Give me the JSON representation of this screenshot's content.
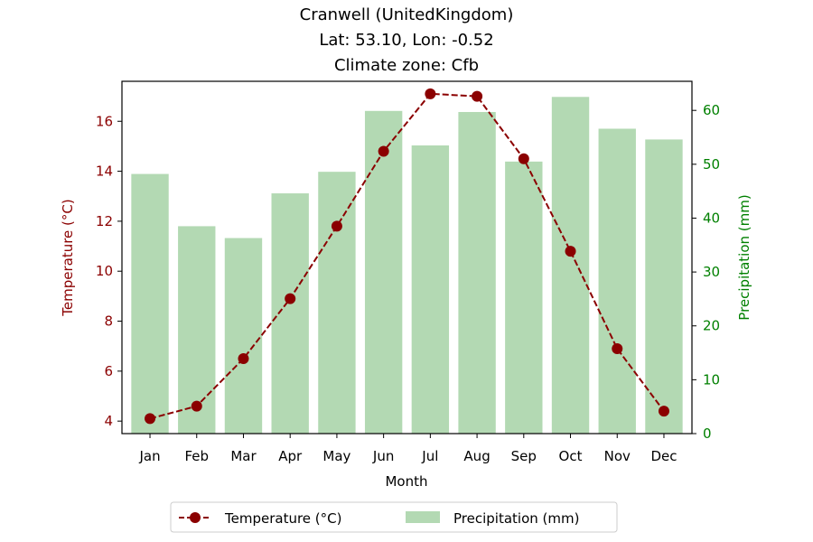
{
  "colors": {
    "temperature": "#8b0000",
    "precipitation_fill": "#b3d9b3",
    "precipitation_axis": "#008000",
    "axis": "#000000"
  },
  "chart_data": {
    "type": "bar",
    "title_lines": [
      "Cranwell (UnitedKingdom)",
      "Lat: 53.10, Lon: -0.52",
      "Climate zone: Cfb"
    ],
    "xlabel": "Month",
    "ylabel_left": "Temperature (°C)",
    "ylabel_right": "Precipitation (mm)",
    "categories": [
      "Jan",
      "Feb",
      "Mar",
      "Apr",
      "May",
      "Jun",
      "Jul",
      "Aug",
      "Sep",
      "Oct",
      "Nov",
      "Dec"
    ],
    "ylim_left": [
      3.5,
      17.6
    ],
    "ylim_right": [
      0,
      65.4
    ],
    "yticks_left": [
      4,
      6,
      8,
      10,
      12,
      14,
      16
    ],
    "yticks_right": [
      0,
      10,
      20,
      30,
      40,
      50,
      60
    ],
    "legend_position": "bottom-center",
    "grid": false,
    "series": [
      {
        "name": "Temperature (°C)",
        "type": "line",
        "axis": "left",
        "line_style": "dashed",
        "marker": "circle",
        "values": [
          4.1,
          4.6,
          6.5,
          8.9,
          11.8,
          14.8,
          17.1,
          17.0,
          14.5,
          10.8,
          6.9,
          4.4
        ]
      },
      {
        "name": "Precipitation (mm)",
        "type": "bar",
        "axis": "right",
        "values": [
          48.2,
          38.5,
          36.3,
          44.6,
          48.6,
          59.9,
          53.5,
          59.7,
          50.5,
          62.5,
          56.6,
          54.6
        ]
      }
    ]
  }
}
